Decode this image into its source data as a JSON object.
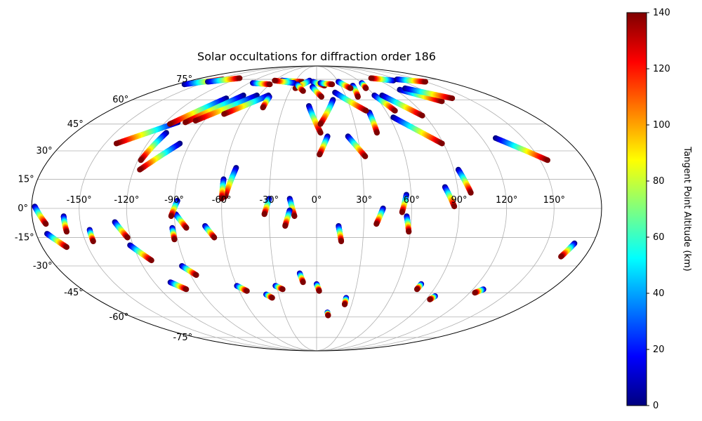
{
  "chart_data": {
    "type": "scatter",
    "projection": "mollweide",
    "title": "Solar occultations for diffraction order 186",
    "grid": true,
    "legend": "none",
    "xlim": [
      -180,
      180
    ],
    "ylim": [
      -90,
      90
    ],
    "x_ticks": [
      -150,
      -120,
      -90,
      -60,
      -30,
      0,
      30,
      60,
      90,
      120,
      150
    ],
    "x_tick_labels": [
      "-150°",
      "-120°",
      "-90°",
      "-60°",
      "-30°",
      "0°",
      "30°",
      "60°",
      "90°",
      "120°",
      "150°"
    ],
    "y_ticks": [
      -75,
      -60,
      -45,
      -30,
      -15,
      0,
      15,
      30,
      45,
      60,
      75
    ],
    "y_tick_labels": [
      "-75°",
      "-60°",
      "-45°",
      "-30°",
      "-15°",
      "0°",
      "15°",
      "30°",
      "45°",
      "60°",
      "75°"
    ],
    "colorbar": {
      "label": "Tangent Point Altitude (km)",
      "range": [
        0,
        140
      ],
      "ticks": [
        0,
        20,
        40,
        60,
        80,
        100,
        120,
        140
      ],
      "tick_labels": [
        "0",
        "20",
        "40",
        "60",
        "80",
        "100",
        "120",
        "140"
      ],
      "colormap": "jet",
      "colors": [
        "#00007f",
        "#0000ff",
        "#007fff",
        "#00ffff",
        "#7fff7f",
        "#ffff00",
        "#ff7f00",
        "#ff0000",
        "#7f0000"
      ]
    },
    "tracks": [
      {
        "start": [
          -178,
          1
        ],
        "end": [
          -172,
          -8
        ]
      },
      {
        "start": [
          -173,
          -13
        ],
        "end": [
          -164,
          -20
        ]
      },
      {
        "start": [
          -160,
          -4
        ],
        "end": [
          -160,
          -12
        ]
      },
      {
        "start": [
          -145,
          -11
        ],
        "end": [
          -145,
          -17
        ]
      },
      {
        "start": [
          -128,
          -7
        ],
        "end": [
          -122,
          -15
        ]
      },
      {
        "start": [
          -122,
          -19
        ],
        "end": [
          -112,
          -27
        ]
      },
      {
        "start": [
          -108,
          -39
        ],
        "end": [
          -100,
          -43
        ]
      },
      {
        "start": [
          -93,
          -30
        ],
        "end": [
          -86,
          -35
        ]
      },
      {
        "start": [
          -92,
          -10
        ],
        "end": [
          -92,
          -16
        ]
      },
      {
        "start": [
          -89,
          -3
        ],
        "end": [
          -83,
          -10
        ]
      },
      {
        "start": [
          -88,
          4
        ],
        "end": [
          -92,
          -4
        ]
      },
      {
        "start": [
          -71,
          -9
        ],
        "end": [
          -66,
          -15
        ]
      },
      {
        "start": [
          -60,
          -41
        ],
        "end": [
          -54,
          -44
        ]
      },
      {
        "start": [
          -40,
          -46
        ],
        "end": [
          -36,
          -48
        ]
      },
      {
        "start": [
          -31,
          -41
        ],
        "end": [
          -26,
          -43
        ]
      },
      {
        "start": [
          -53,
          21
        ],
        "end": [
          -58,
          6
        ]
      },
      {
        "start": [
          -60,
          15
        ],
        "end": [
          -60,
          5
        ]
      },
      {
        "start": [
          -30,
          5
        ],
        "end": [
          -33,
          -3
        ]
      },
      {
        "start": [
          -17,
          5
        ],
        "end": [
          -14,
          -4
        ]
      },
      {
        "start": [
          -17,
          -1
        ],
        "end": [
          -20,
          -9
        ]
      },
      {
        "start": [
          -12,
          -34
        ],
        "end": [
          -10,
          -39
        ]
      },
      {
        "start": [
          0,
          -40
        ],
        "end": [
          2,
          -44
        ]
      },
      {
        "start": [
          10,
          -57
        ],
        "end": [
          11,
          -59
        ]
      },
      {
        "start": [
          24,
          -48
        ],
        "end": [
          24,
          -52
        ]
      },
      {
        "start": [
          14,
          -9
        ],
        "end": [
          16,
          -17
        ]
      },
      {
        "start": [
          42,
          0
        ],
        "end": [
          38,
          -8
        ]
      },
      {
        "start": [
          57,
          7
        ],
        "end": [
          54,
          -2
        ]
      },
      {
        "start": [
          57,
          -4
        ],
        "end": [
          59,
          -12
        ]
      },
      {
        "start": [
          78,
          -40
        ],
        "end": [
          77,
          -43
        ]
      },
      {
        "start": [
          95,
          -47
        ],
        "end": [
          93,
          -49
        ]
      },
      {
        "start": [
          128,
          -43
        ],
        "end": [
          124,
          -45
        ]
      },
      {
        "start": [
          168,
          -18
        ],
        "end": [
          164,
          -25
        ]
      },
      {
        "start": [
          82,
          11
        ],
        "end": [
          87,
          1
        ]
      },
      {
        "start": [
          93,
          20
        ],
        "end": [
          98,
          8
        ]
      },
      {
        "start": [
          130,
          37
        ],
        "end": [
          155,
          25
        ]
      },
      {
        "start": [
          8,
          38
        ],
        "end": [
          2,
          28
        ]
      },
      {
        "start": [
          23,
          38
        ],
        "end": [
          33,
          27
        ]
      },
      {
        "start": [
          45,
          52
        ],
        "end": [
          45,
          40
        ]
      },
      {
        "start": [
          63,
          49
        ],
        "end": [
          89,
          34
        ]
      },
      {
        "start": [
          -97,
          34
        ],
        "end": [
          -116,
          20
        ]
      },
      {
        "start": [
          -112,
          40
        ],
        "end": [
          -118,
          25
        ]
      },
      {
        "start": [
          -110,
          46
        ],
        "end": [
          -142,
          34
        ]
      },
      {
        "start": [
          -90,
          61
        ],
        "end": [
          -115,
          45
        ]
      },
      {
        "start": [
          -76,
          63
        ],
        "end": [
          -104,
          46
        ]
      },
      {
        "start": [
          -62,
          63
        ],
        "end": [
          -97,
          47
        ]
      },
      {
        "start": [
          -50,
          63
        ],
        "end": [
          -78,
          51
        ]
      },
      {
        "start": [
          -7,
          56
        ],
        "end": [
          3,
          40
        ]
      },
      {
        "start": [
          16,
          60
        ],
        "end": [
          3,
          45
        ]
      },
      {
        "start": [
          20,
          65
        ],
        "end": [
          43,
          53
        ]
      },
      {
        "start": [
          45,
          70
        ],
        "end": [
          42,
          62
        ]
      },
      {
        "start": [
          60,
          63
        ],
        "end": [
          68,
          53
        ]
      },
      {
        "start": [
          68,
          63
        ],
        "end": [
          88,
          50
        ]
      },
      {
        "start": [
          95,
          67
        ],
        "end": [
          120,
          59
        ]
      },
      {
        "start": [
          104,
          68
        ],
        "end": [
          135,
          61
        ]
      },
      {
        "start": [
          -48,
          62
        ],
        "end": [
          -48,
          55
        ]
      },
      {
        "start": [
          -170,
          71
        ],
        "end": [
          -140,
          75
        ]
      },
      {
        "start": [
          -150,
          73
        ],
        "end": [
          -120,
          76
        ]
      },
      {
        "start": [
          -85,
          72
        ],
        "end": [
          -60,
          71
        ]
      },
      {
        "start": [
          -50,
          74
        ],
        "end": [
          -20,
          73
        ]
      },
      {
        "start": [
          -30,
          72
        ],
        "end": [
          -60,
          74
        ]
      },
      {
        "start": [
          -10,
          74
        ],
        "end": [
          -25,
          68
        ]
      },
      {
        "start": [
          -5,
          73
        ],
        "end": [
          10,
          70
        ]
      },
      {
        "start": [
          5,
          72
        ],
        "end": [
          20,
          71
        ]
      },
      {
        "start": [
          30,
          73
        ],
        "end": [
          40,
          68
        ]
      },
      {
        "start": [
          60,
          72
        ],
        "end": [
          58,
          68
        ]
      },
      {
        "start": [
          110,
          74
        ],
        "end": [
          85,
          76
        ]
      },
      {
        "start": [
          120,
          75
        ],
        "end": [
          150,
          73
        ]
      },
      {
        "start": [
          -5,
          69
        ],
        "end": [
          5,
          62
        ]
      },
      {
        "start": [
          -25,
          71
        ],
        "end": [
          -15,
          66
        ]
      }
    ]
  }
}
